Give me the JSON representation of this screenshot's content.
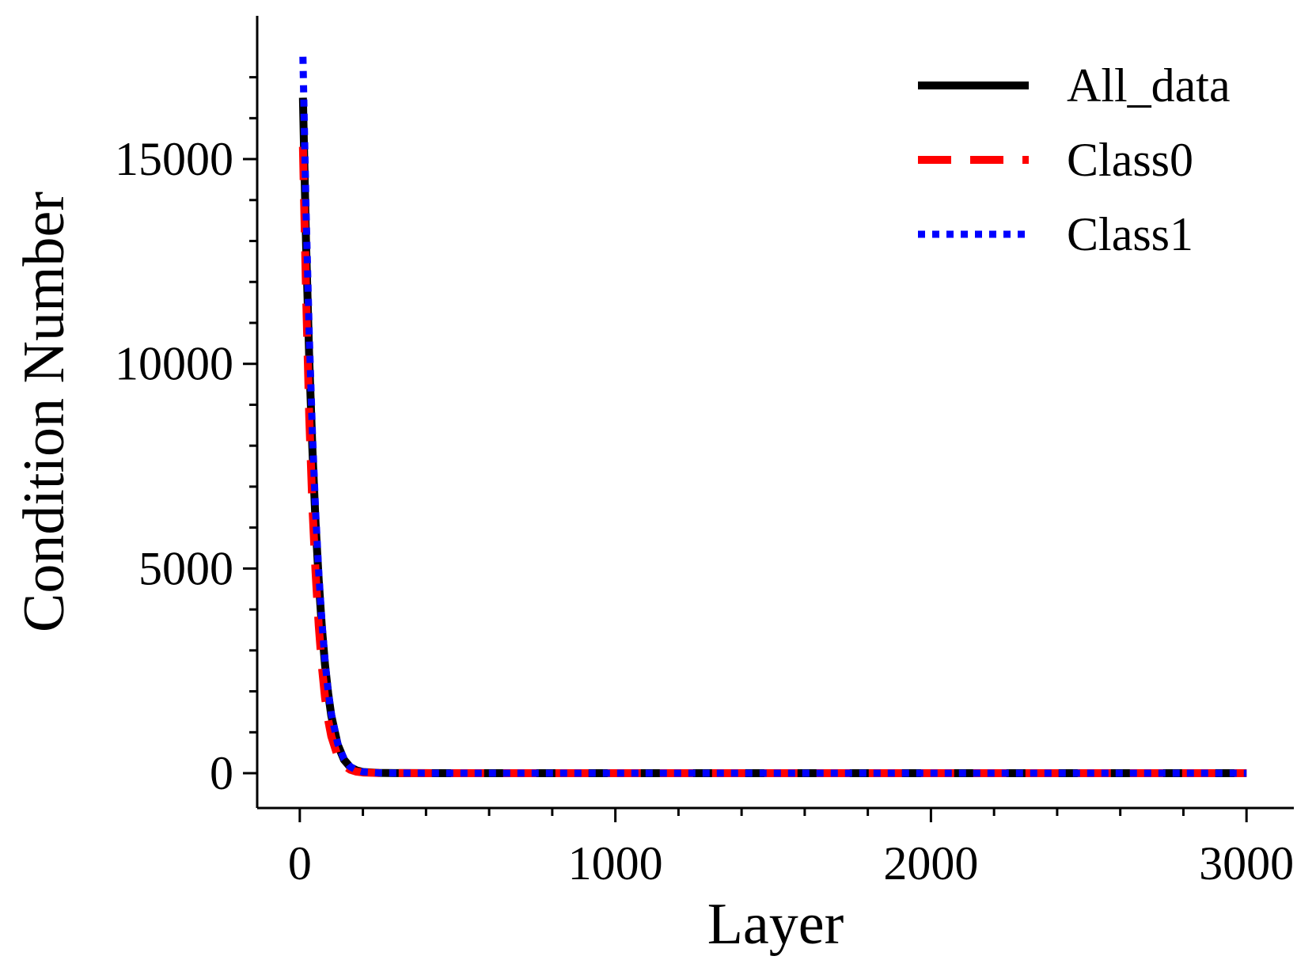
{
  "chart_data": {
    "type": "line",
    "title": "",
    "xlabel": "Layer",
    "ylabel": "Condition Number",
    "xlim": [
      -135,
      3150
    ],
    "ylim": [
      -850,
      18500
    ],
    "xticks": [
      0,
      1000,
      2000,
      3000
    ],
    "xtick_labels": [
      "0",
      "1000",
      "2000",
      "3000"
    ],
    "yticks": [
      0,
      5000,
      10000,
      15000
    ],
    "ytick_labels": [
      "0",
      "5000",
      "10000",
      "15000"
    ],
    "grid": false,
    "legend_position": "top-right",
    "series": [
      {
        "name": "All_data",
        "color": "#000000",
        "style": "solid",
        "x": [
          10,
          20,
          30,
          40,
          50,
          60,
          70,
          80,
          90,
          100,
          120,
          140,
          160,
          180,
          200,
          250,
          300,
          500,
          1000,
          1500,
          2000,
          2500,
          3000
        ],
        "y": [
          16500,
          12900,
          10100,
          7900,
          6100,
          4700,
          3550,
          2650,
          1950,
          1400,
          700,
          330,
          150,
          70,
          30,
          8,
          3,
          1,
          1,
          1,
          1,
          1,
          1
        ]
      },
      {
        "name": "Class0",
        "color": "#ff0000",
        "style": "dashed",
        "x": [
          10,
          20,
          30,
          40,
          50,
          60,
          70,
          80,
          90,
          100,
          120,
          140,
          160,
          180,
          200,
          250,
          300,
          500,
          1000,
          1500,
          2000,
          2500,
          3000
        ],
        "y": [
          15300,
          11700,
          8700,
          6500,
          4900,
          3600,
          2600,
          1850,
          1300,
          900,
          420,
          190,
          85,
          38,
          17,
          5,
          2,
          1,
          1,
          1,
          1,
          1,
          1
        ]
      },
      {
        "name": "Class1",
        "color": "#0000ff",
        "style": "dotted",
        "x": [
          10,
          20,
          30,
          40,
          50,
          60,
          70,
          80,
          90,
          100,
          120,
          140,
          160,
          180,
          200,
          250,
          300,
          500,
          1000,
          1500,
          2000,
          2500,
          3000
        ],
        "y": [
          17500,
          13700,
          10700,
          8300,
          6400,
          4900,
          3700,
          2750,
          2000,
          1450,
          730,
          350,
          160,
          75,
          33,
          9,
          3,
          1,
          1,
          1,
          1,
          1,
          1
        ]
      }
    ]
  }
}
